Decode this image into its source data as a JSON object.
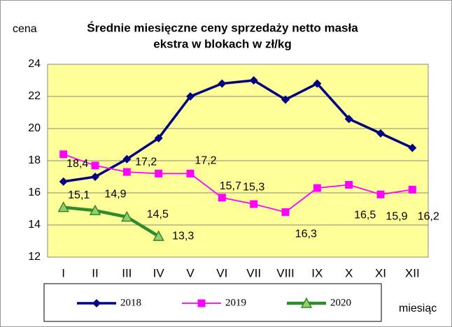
{
  "chart_data": {
    "type": "line",
    "title": [
      "Średnie miesięczne ceny sprzedaży netto masła",
      "ekstra w blokach w zł/kg"
    ],
    "y_label": "cena",
    "x_label": "miesiąc",
    "categories": [
      "I",
      "II",
      "III",
      "IV",
      "V",
      "VI",
      "VII",
      "VIII",
      "IX",
      "X",
      "XI",
      "XII"
    ],
    "series": [
      {
        "name": "2018",
        "color": "#000080",
        "marker": "diamond",
        "values": [
          16.7,
          17.0,
          18.1,
          19.4,
          22.0,
          22.8,
          23.0,
          21.8,
          22.8,
          20.6,
          19.7,
          18.8
        ]
      },
      {
        "name": "2019",
        "color": "#ff00ff",
        "marker": "square",
        "values": [
          18.4,
          17.7,
          17.3,
          17.2,
          17.2,
          15.7,
          15.3,
          14.8,
          16.3,
          16.5,
          15.9,
          16.2
        ],
        "value_labels": [
          "18,4",
          null,
          null,
          "17,2",
          "17,2",
          "15,7",
          "15,3",
          null,
          "16,3",
          "16,5",
          "15,9",
          "16,2"
        ]
      },
      {
        "name": "2020",
        "color": "#2e8b2e",
        "marker": "triangle",
        "values": [
          15.1,
          14.9,
          14.5,
          13.3,
          null,
          null,
          null,
          null,
          null,
          null,
          null,
          null
        ],
        "value_labels": [
          "15,1",
          "14,9",
          "14,5",
          "13,3",
          null,
          null,
          null,
          null,
          null,
          null,
          null,
          null
        ]
      }
    ],
    "ylim": [
      12,
      24
    ],
    "yticks": [
      12,
      14,
      16,
      18,
      20,
      22,
      24
    ],
    "grid": true,
    "legend": "bottom"
  }
}
